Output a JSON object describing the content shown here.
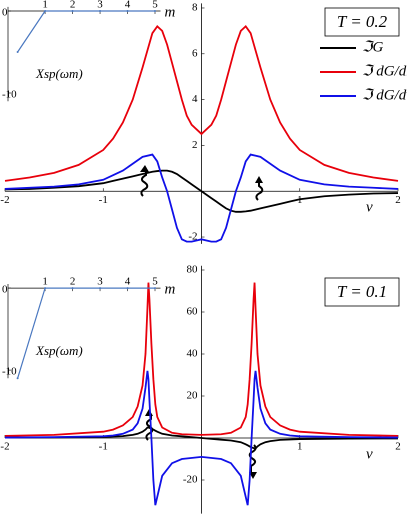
{
  "chart_data": [
    {
      "type": "line",
      "xlabel": "ν",
      "annotation": "T = 0.2",
      "xlim": [
        -2,
        2
      ],
      "xticks": [
        -2,
        -1,
        1,
        2
      ],
      "ylim": [
        -2.3,
        8.2
      ],
      "yticks": [
        -2,
        2,
        4,
        6,
        8
      ],
      "x": [
        -2,
        -1.75,
        -1.5,
        -1.25,
        -1,
        -0.9,
        -0.8,
        -0.7,
        -0.6,
        -0.5,
        -0.45,
        -0.4,
        -0.35,
        -0.3,
        -0.25,
        -0.2,
        -0.15,
        -0.1,
        0,
        0.1,
        0.15,
        0.2,
        0.25,
        0.3,
        0.35,
        0.4,
        0.45,
        0.5,
        0.6,
        0.7,
        0.8,
        0.9,
        1,
        1.25,
        1.5,
        1.75,
        2
      ],
      "series": [
        {
          "name": "ℑG",
          "color": "#000000",
          "values": [
            0.08,
            0.1,
            0.15,
            0.22,
            0.35,
            0.45,
            0.55,
            0.65,
            0.75,
            0.85,
            0.88,
            0.9,
            0.9,
            0.85,
            0.75,
            0.6,
            0.45,
            0.3,
            0,
            -0.3,
            -0.45,
            -0.6,
            -0.75,
            -0.85,
            -0.9,
            -0.9,
            -0.88,
            -0.85,
            -0.75,
            -0.65,
            -0.55,
            -0.45,
            -0.35,
            -0.22,
            -0.15,
            -0.1,
            -0.08
          ]
        },
        {
          "name": "ℑ dG/dh",
          "color": "#e8000b",
          "values": [
            0.45,
            0.6,
            0.8,
            1.15,
            1.8,
            2.3,
            3.0,
            4.0,
            5.4,
            6.9,
            7.2,
            7.0,
            6.4,
            5.6,
            4.8,
            4.0,
            3.3,
            2.9,
            2.5,
            2.9,
            3.3,
            4.0,
            4.8,
            5.6,
            6.4,
            7.0,
            7.2,
            6.9,
            5.4,
            4.0,
            3.0,
            2.3,
            1.8,
            1.15,
            0.8,
            0.6,
            0.45
          ]
        },
        {
          "name": "ℑ dG/dν",
          "color": "#1010e8",
          "values": [
            0.1,
            0.15,
            0.2,
            0.3,
            0.5,
            0.7,
            0.9,
            1.2,
            1.5,
            1.6,
            1.3,
            0.6,
            0,
            -0.8,
            -1.6,
            -2.1,
            -2.2,
            -2.2,
            -2.1,
            -2.2,
            -2.2,
            -2.1,
            -1.6,
            -0.8,
            0,
            0.6,
            1.3,
            1.6,
            1.5,
            1.2,
            0.9,
            0.7,
            0.5,
            0.3,
            0.2,
            0.15,
            0.1
          ]
        }
      ],
      "inset": {
        "xlabel": "m",
        "ylabel": "Xsp(ωm)",
        "x": [
          0,
          1,
          2,
          3,
          4,
          5
        ],
        "values": [
          -5,
          0,
          0,
          0,
          0,
          0
        ],
        "color": "#4a78c0",
        "xlim": [
          -0.35,
          5.2
        ],
        "xticks": [
          1,
          2,
          3,
          4,
          5
        ],
        "ylim": [
          -11,
          0.5
        ],
        "yticks": [
          0,
          -10
        ]
      }
    },
    {
      "type": "line",
      "xlabel": "ν",
      "annotation": "T = 0.1",
      "xlim": [
        -2,
        2
      ],
      "xticks": [
        -2,
        -1,
        1,
        2
      ],
      "ylim": [
        -36,
        82
      ],
      "yticks": [
        -20,
        20,
        40,
        60,
        80
      ],
      "x": [
        -2,
        -1.5,
        -1,
        -0.9,
        -0.8,
        -0.7,
        -0.65,
        -0.6,
        -0.57,
        -0.55,
        -0.54,
        -0.53,
        -0.51,
        -0.49,
        -0.47,
        -0.45,
        -0.4,
        -0.3,
        -0.2,
        0,
        0.2,
        0.3,
        0.4,
        0.45,
        0.47,
        0.49,
        0.51,
        0.53,
        0.54,
        0.55,
        0.57,
        0.6,
        0.65,
        0.7,
        0.8,
        0.9,
        1,
        1.5,
        2
      ],
      "series": [
        {
          "color": "#000000",
          "values": [
            0.2,
            0.3,
            0.5,
            0.7,
            0.9,
            1.5,
            2,
            3,
            4,
            5,
            5,
            4.8,
            4.5,
            4,
            3.5,
            3,
            2,
            1.2,
            0.8,
            0,
            -0.8,
            -1.2,
            -2,
            -3,
            -3.5,
            -4,
            -4.5,
            -4.8,
            -5,
            -5,
            -4,
            -3,
            -2,
            -1.5,
            -0.9,
            -0.7,
            -0.5,
            -0.3,
            -0.2
          ]
        },
        {
          "color": "#e8000b",
          "values": [
            1,
            1.5,
            3,
            4,
            6,
            10,
            15,
            25,
            40,
            62,
            74,
            66,
            45,
            28,
            16,
            10,
            5,
            2.5,
            1.8,
            1.5,
            1.8,
            2.5,
            5,
            10,
            16,
            28,
            45,
            66,
            74,
            62,
            40,
            25,
            15,
            10,
            6,
            4,
            3,
            1.5,
            1
          ]
        },
        {
          "color": "#1010e8",
          "values": [
            0.2,
            0.4,
            0.8,
            1.2,
            2,
            4,
            7,
            14,
            24,
            32,
            28,
            18,
            0,
            -20,
            -32,
            -28,
            -18,
            -12,
            -10,
            -9,
            -10,
            -12,
            -18,
            -28,
            -32,
            -20,
            0,
            18,
            28,
            32,
            24,
            14,
            7,
            4,
            2,
            1.2,
            0.8,
            0.4,
            0.2
          ]
        }
      ],
      "inset": {
        "xlabel": "m",
        "ylabel": "Xsp(ωm)",
        "x": [
          0,
          1,
          2,
          3,
          4,
          5
        ],
        "values": [
          -11,
          0,
          0,
          0,
          0,
          0
        ],
        "color": "#4a78c0",
        "xlim": [
          -0.35,
          5.2
        ],
        "xticks": [
          1,
          2,
          3,
          4,
          5
        ],
        "ylim": [
          -11,
          0.5
        ],
        "yticks": [
          0,
          -10
        ]
      }
    }
  ]
}
